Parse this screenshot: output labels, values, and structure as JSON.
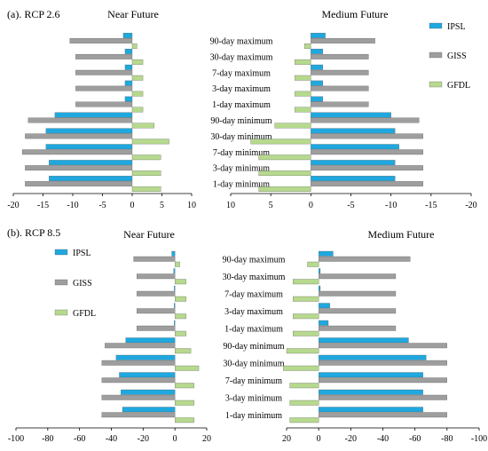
{
  "colors": {
    "IPSL": "#1fa8df",
    "GISS": "#9e9e9e",
    "GFDL": "#b6d98e"
  },
  "series_names": [
    "IPSL",
    "GISS",
    "GFDL"
  ],
  "chart_data": [
    {
      "type": "bar",
      "panel_label": "(a). RCP 2.6",
      "title": "Near Future",
      "orientation": "horizontal",
      "categories": [
        "90-day maximum",
        "30-day maximum",
        "7-day maximum",
        "3-day maximum",
        "1-day maximum",
        "90-day minimum",
        "30-day minimum",
        "7-day minimum",
        "3-day minimum",
        "1-day minimum"
      ],
      "series": [
        {
          "name": "IPSL",
          "values": [
            -1.5,
            -1.2,
            -1.2,
            -1.2,
            -1.2,
            -13,
            -14.5,
            -14.5,
            -14,
            -14
          ]
        },
        {
          "name": "GISS",
          "values": [
            -10.5,
            -9.5,
            -9.5,
            -9.5,
            -9.5,
            -17.5,
            -18,
            -18.5,
            -18,
            -18
          ]
        },
        {
          "name": "GFDL",
          "values": [
            0.8,
            1.8,
            1.8,
            1.8,
            1.8,
            3.7,
            6.2,
            4.8,
            4.8,
            4.8
          ]
        }
      ],
      "xlim": [
        -20,
        10
      ],
      "xticks": [
        -20,
        -15,
        -10,
        -5,
        0,
        5,
        10
      ]
    },
    {
      "type": "bar",
      "title": "Medium Future",
      "orientation": "horizontal",
      "reversed_x": true,
      "categories": [
        "90-day maximum",
        "30-day maximum",
        "7-day maximum",
        "3-day maximum",
        "1-day maximum",
        "90-day minimum",
        "30-day minimum",
        "7-day minimum",
        "3-day minimum",
        "1-day minimum"
      ],
      "series": [
        {
          "name": "IPSL",
          "values": [
            -1.8,
            -1.5,
            -1.5,
            -1.5,
            -1.5,
            -10,
            -10.5,
            -11,
            -10.5,
            -10.5
          ]
        },
        {
          "name": "GISS",
          "values": [
            -8,
            -7.2,
            -7.2,
            -7.2,
            -7.2,
            -13.5,
            -14,
            -14,
            -14,
            -14
          ]
        },
        {
          "name": "GFDL",
          "values": [
            0.8,
            2,
            2,
            2,
            2,
            4.5,
            7.5,
            6.5,
            6.5,
            6.5
          ]
        }
      ],
      "xlim": [
        10,
        -20
      ],
      "xticks": [
        10,
        5,
        0,
        -5,
        -10,
        -15,
        -20
      ],
      "legend": "right"
    },
    {
      "type": "bar",
      "panel_label": "(b). RCP 8.5",
      "title": "Near Future",
      "orientation": "horizontal",
      "categories": [
        "90-day maximum",
        "30-day maximum",
        "7-day maximum",
        "3-day maximum",
        "1-day maximum",
        "90-day minimum",
        "30-day minimum",
        "7-day minimum",
        "3-day minimum",
        "1-day minimum"
      ],
      "series": [
        {
          "name": "IPSL",
          "values": [
            -2,
            -0.8,
            -0.5,
            -0.5,
            -0.5,
            -31,
            -37,
            -35,
            -34,
            -33
          ]
        },
        {
          "name": "GISS",
          "values": [
            -26,
            -24,
            -24,
            -24,
            -24,
            -44,
            -46,
            -46,
            -46,
            -46
          ]
        },
        {
          "name": "GFDL",
          "values": [
            3,
            7,
            7,
            7,
            7,
            10,
            15,
            12,
            12,
            12
          ]
        }
      ],
      "xlim": [
        -100,
        20
      ],
      "xticks": [
        -100,
        -80,
        -60,
        -40,
        -20,
        0,
        20
      ],
      "legend": "left"
    },
    {
      "type": "bar",
      "title": "Medium Future",
      "orientation": "horizontal",
      "reversed_x": true,
      "categories": [
        "90-day maximum",
        "30-day maximum",
        "7-day maximum",
        "3-day maximum",
        "1-day maximum",
        "90-day minimum",
        "30-day minimum",
        "7-day minimum",
        "3-day minimum",
        "1-day minimum"
      ],
      "series": [
        {
          "name": "IPSL",
          "values": [
            -9,
            -1,
            -1,
            -7,
            -6,
            -56,
            -67,
            -65,
            -65,
            -65
          ]
        },
        {
          "name": "GISS",
          "values": [
            -57,
            -48,
            -48,
            -48,
            -48,
            -80,
            -80,
            -80,
            -80,
            -80
          ]
        },
        {
          "name": "GFDL",
          "values": [
            7,
            16,
            16,
            16,
            16,
            20,
            22,
            18,
            18,
            18
          ]
        }
      ],
      "xlim": [
        20,
        -100
      ],
      "xticks": [
        20,
        0,
        -20,
        -40,
        -60,
        -80,
        -100
      ]
    }
  ]
}
